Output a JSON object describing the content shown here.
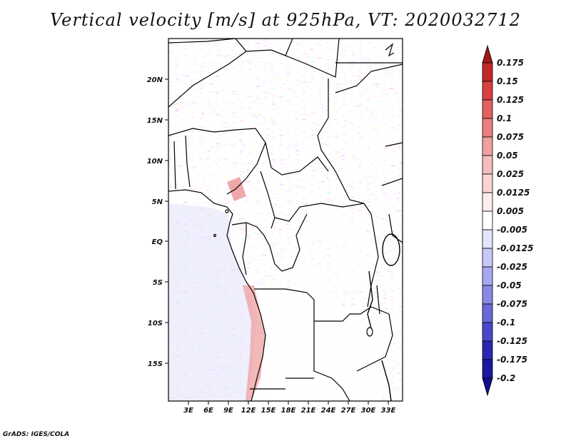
{
  "title": "Vertical velocity [m/s] at 925hPa, VT: 2020032712",
  "credit": "GrADS: IGES/COLA",
  "map": {
    "lat_ticks": [
      "20N",
      "15N",
      "10N",
      "5N",
      "EQ",
      "5S",
      "10S",
      "15S"
    ],
    "lon_ticks": [
      "3E",
      "6E",
      "9E",
      "12E",
      "15E",
      "18E",
      "21E",
      "24E",
      "27E",
      "30E",
      "33E"
    ]
  },
  "colorbar": {
    "labels": [
      "0.175",
      "0.15",
      "0.125",
      "0.1",
      "0.075",
      "0.05",
      "0.025",
      "0.0125",
      "0.005",
      "-0.005",
      "-0.0125",
      "-0.025",
      "-0.05",
      "-0.075",
      "-0.1",
      "-0.125",
      "-0.175",
      "-0.2"
    ],
    "colors": [
      "#a01818",
      "#c02828",
      "#d84040",
      "#e46060",
      "#ea8080",
      "#f0a0a0",
      "#f4bcbc",
      "#f8d4d4",
      "#fcecec",
      "#ffffff",
      "#e4e4fc",
      "#c8c8f8",
      "#a8a8f0",
      "#8888e4",
      "#6868d8",
      "#4848c8",
      "#2828b0",
      "#1818a0",
      "#10108c"
    ]
  }
}
